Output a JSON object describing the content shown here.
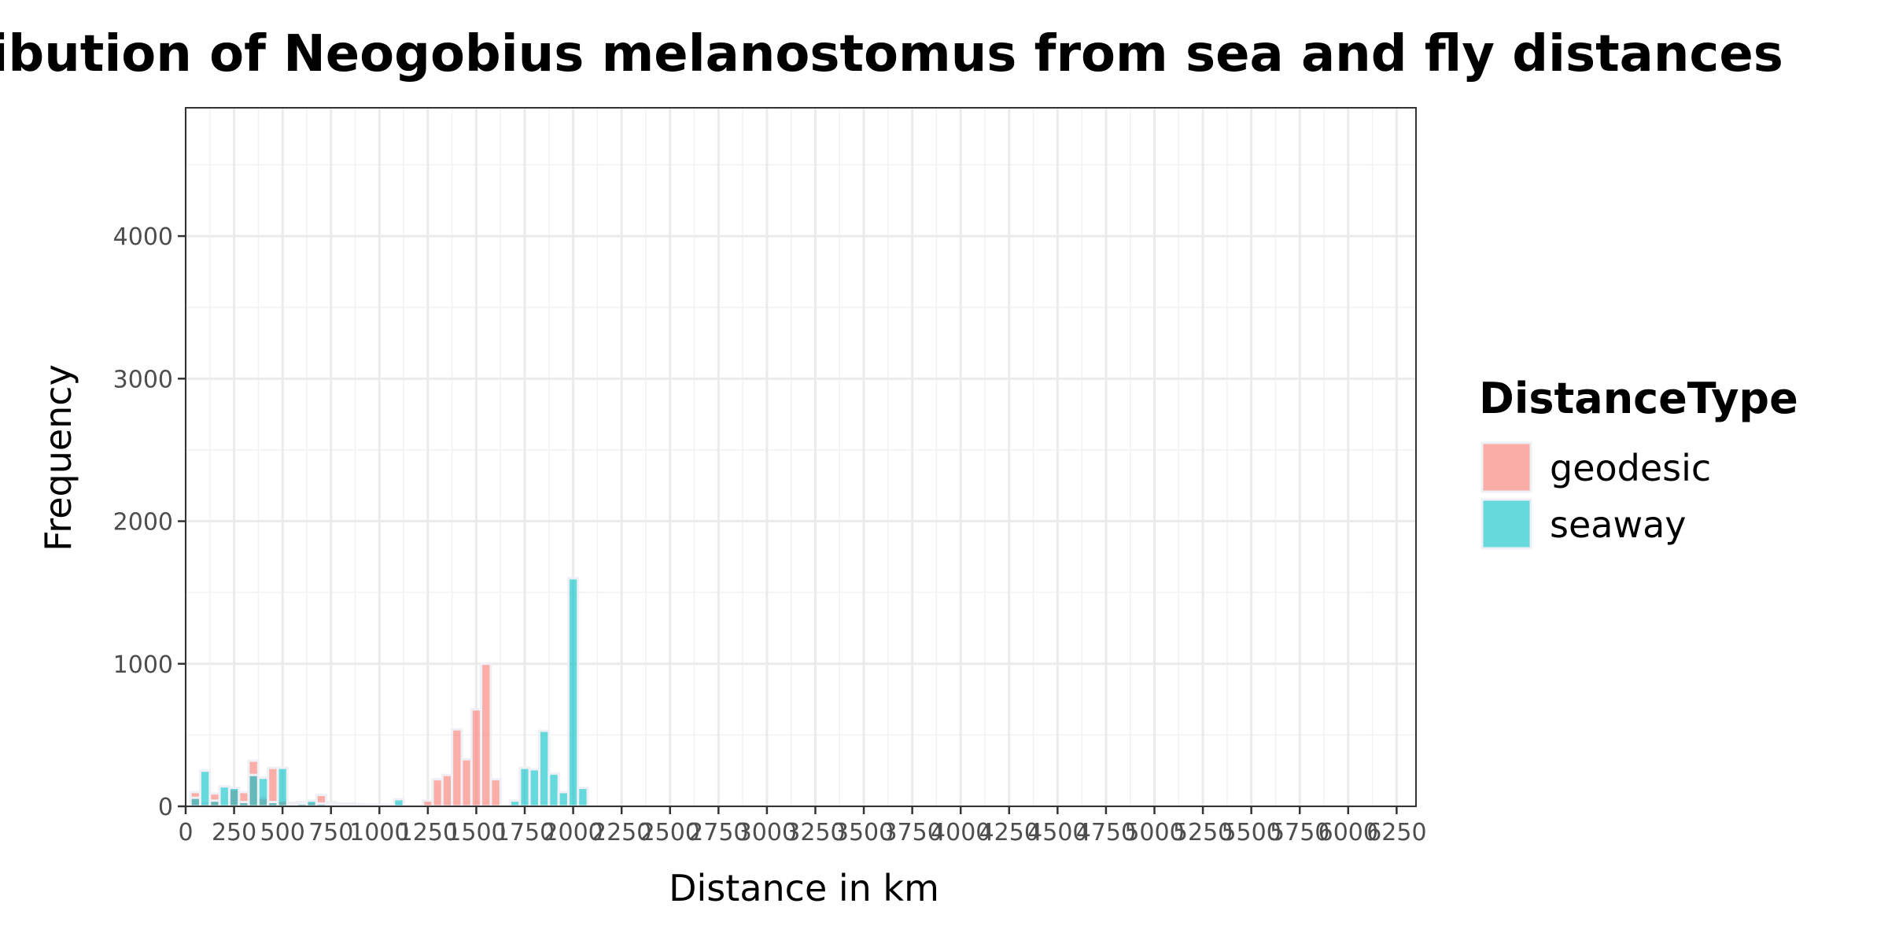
{
  "chart_data": {
    "type": "bar",
    "title": "Distribution of Neogobius melanostomus from sea and fly distances",
    "xlabel": "Distance in km",
    "ylabel": "Frequency",
    "xlim": [
      0,
      6350
    ],
    "ylim": [
      0,
      4900
    ],
    "x_ticks": [
      "0",
      "250",
      "500",
      "750",
      "1000",
      "1250",
      "1500",
      "1750",
      "2000",
      "2250",
      "2500",
      "2750",
      "3000",
      "3250",
      "3500",
      "3750",
      "4000",
      "4250",
      "4500",
      "4750",
      "5000",
      "5250",
      "5500",
      "5750",
      "6000",
      "6250"
    ],
    "y_ticks": [
      "0",
      "1000",
      "2000",
      "3000",
      "4000"
    ],
    "grid": true,
    "bin_width": 50,
    "legend": {
      "title": "DistanceType",
      "position": "right"
    },
    "series": [
      {
        "name": "geodesic",
        "color": "#F8766D",
        "bins": [
          {
            "x": 50,
            "y": 100
          },
          {
            "x": 100,
            "y": 20
          },
          {
            "x": 150,
            "y": 90
          },
          {
            "x": 250,
            "y": 120
          },
          {
            "x": 300,
            "y": 100
          },
          {
            "x": 350,
            "y": 320
          },
          {
            "x": 400,
            "y": 60
          },
          {
            "x": 450,
            "y": 270
          },
          {
            "x": 500,
            "y": 40
          },
          {
            "x": 550,
            "y": 25
          },
          {
            "x": 600,
            "y": 30
          },
          {
            "x": 650,
            "y": 30
          },
          {
            "x": 700,
            "y": 80
          },
          {
            "x": 750,
            "y": 30
          },
          {
            "x": 800,
            "y": 20
          },
          {
            "x": 850,
            "y": 20
          },
          {
            "x": 900,
            "y": 15
          },
          {
            "x": 950,
            "y": 10
          },
          {
            "x": 1000,
            "y": 10
          },
          {
            "x": 1050,
            "y": 10
          },
          {
            "x": 1100,
            "y": 10
          },
          {
            "x": 1250,
            "y": 40
          },
          {
            "x": 1300,
            "y": 190
          },
          {
            "x": 1350,
            "y": 220
          },
          {
            "x": 1400,
            "y": 540
          },
          {
            "x": 1450,
            "y": 330
          },
          {
            "x": 1500,
            "y": 680
          },
          {
            "x": 1550,
            "y": 1000
          },
          {
            "x": 1600,
            "y": 190
          }
        ]
      },
      {
        "name": "seaway",
        "color": "#00BFC4",
        "bins": [
          {
            "x": 50,
            "y": 60
          },
          {
            "x": 100,
            "y": 250
          },
          {
            "x": 150,
            "y": 40
          },
          {
            "x": 200,
            "y": 140
          },
          {
            "x": 250,
            "y": 130
          },
          {
            "x": 300,
            "y": 30
          },
          {
            "x": 350,
            "y": 220
          },
          {
            "x": 400,
            "y": 200
          },
          {
            "x": 450,
            "y": 30
          },
          {
            "x": 500,
            "y": 270
          },
          {
            "x": 550,
            "y": 10
          },
          {
            "x": 600,
            "y": 20
          },
          {
            "x": 650,
            "y": 40
          },
          {
            "x": 700,
            "y": 20
          },
          {
            "x": 750,
            "y": 15
          },
          {
            "x": 800,
            "y": 10
          },
          {
            "x": 850,
            "y": 15
          },
          {
            "x": 900,
            "y": 10
          },
          {
            "x": 950,
            "y": 10
          },
          {
            "x": 1000,
            "y": 10
          },
          {
            "x": 1100,
            "y": 50
          },
          {
            "x": 1700,
            "y": 40
          },
          {
            "x": 1750,
            "y": 270
          },
          {
            "x": 1800,
            "y": 260
          },
          {
            "x": 1850,
            "y": 530
          },
          {
            "x": 1900,
            "y": 230
          },
          {
            "x": 1950,
            "y": 100
          },
          {
            "x": 2000,
            "y": 1600
          },
          {
            "x": 2050,
            "y": 130
          }
        ]
      }
    ]
  }
}
